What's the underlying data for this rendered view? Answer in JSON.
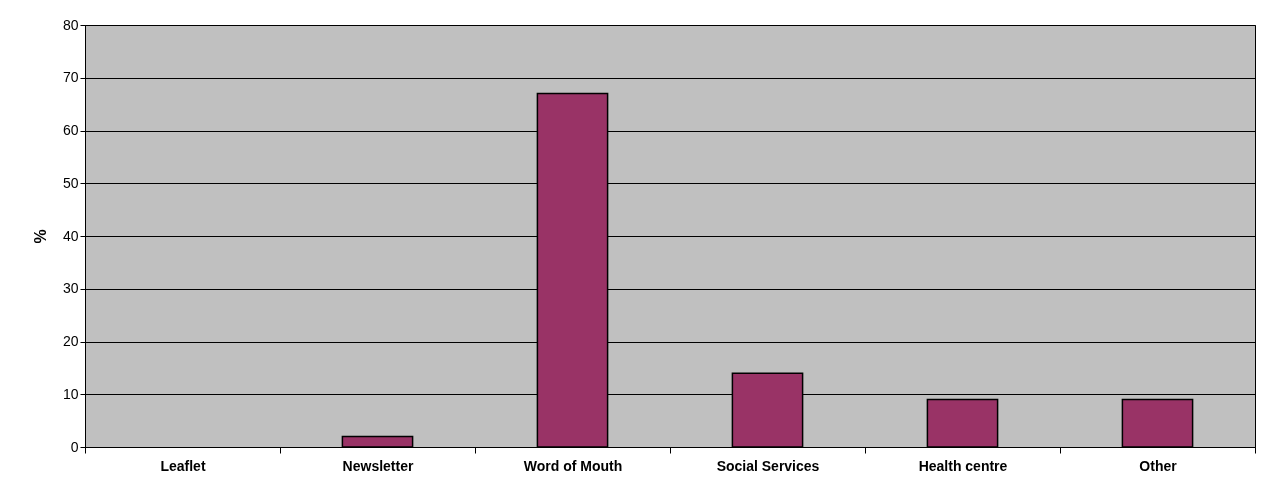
{
  "chart_data": {
    "type": "bar",
    "ylabel": "%",
    "categories": [
      "Leaflet",
      "Newsletter",
      "Word of Mouth",
      "Social Services",
      "Health centre",
      "Other"
    ],
    "values": [
      null,
      2,
      67,
      14,
      9,
      9
    ],
    "color": "#993366",
    "ylim": [
      0,
      80
    ],
    "yticks": [
      0,
      10,
      20,
      30,
      40,
      50,
      60,
      70,
      80
    ],
    "grid": "y"
  }
}
